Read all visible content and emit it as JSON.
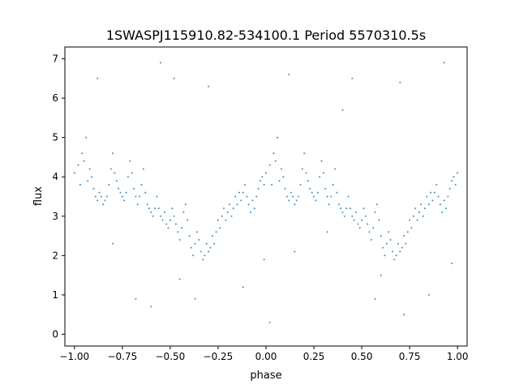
{
  "chart_data": {
    "type": "scatter",
    "title": "1SWASPJ115910.82-534100.1 Period 5570310.5s",
    "xlabel": "phase",
    "ylabel": "flux",
    "xlim": [
      -1.05,
      1.05
    ],
    "ylim": [
      -0.3,
      7.3
    ],
    "xticks": [
      -1.0,
      -0.75,
      -0.5,
      -0.25,
      0.0,
      0.25,
      0.5,
      0.75,
      1.0
    ],
    "xtick_labels": [
      "−1.00",
      "−0.75",
      "−0.50",
      "−0.25",
      "0.00",
      "0.25",
      "0.50",
      "0.75",
      "1.00"
    ],
    "yticks": [
      0,
      1,
      2,
      3,
      4,
      5,
      6,
      7
    ],
    "ytick_labels": [
      "0",
      "1",
      "2",
      "3",
      "4",
      "5",
      "6",
      "7"
    ],
    "grid": false,
    "color": "#1f77b4",
    "series": [
      {
        "points": [
          [
            -1.0,
            4.1
          ],
          [
            -0.98,
            4.3
          ],
          [
            -0.97,
            3.8
          ],
          [
            -0.96,
            4.6
          ],
          [
            -0.95,
            4.4
          ],
          [
            -0.94,
            5.0
          ],
          [
            -0.93,
            3.9
          ],
          [
            -0.92,
            4.2
          ],
          [
            -0.91,
            4.0
          ],
          [
            -0.9,
            3.7
          ],
          [
            -0.89,
            3.5
          ],
          [
            -0.88,
            3.4
          ],
          [
            -0.87,
            3.6
          ],
          [
            -0.86,
            3.5
          ],
          [
            -0.85,
            3.3
          ],
          [
            -0.84,
            3.4
          ],
          [
            -0.83,
            3.5
          ],
          [
            -0.82,
            3.8
          ],
          [
            -0.81,
            4.2
          ],
          [
            -0.8,
            4.6
          ],
          [
            -0.79,
            4.1
          ],
          [
            -0.78,
            3.9
          ],
          [
            -0.77,
            3.7
          ],
          [
            -0.76,
            3.6
          ],
          [
            -0.75,
            3.5
          ],
          [
            -0.74,
            3.4
          ],
          [
            -0.73,
            3.6
          ],
          [
            -0.72,
            4.0
          ],
          [
            -0.71,
            4.4
          ],
          [
            -0.7,
            4.1
          ],
          [
            -0.69,
            3.7
          ],
          [
            -0.68,
            3.5
          ],
          [
            -0.67,
            3.3
          ],
          [
            -0.66,
            3.5
          ],
          [
            -0.65,
            3.8
          ],
          [
            -0.64,
            4.2
          ],
          [
            -0.63,
            3.6
          ],
          [
            -0.62,
            3.3
          ],
          [
            -0.61,
            3.2
          ],
          [
            -0.6,
            3.1
          ],
          [
            -0.59,
            3.0
          ],
          [
            -0.58,
            3.2
          ],
          [
            -0.57,
            3.5
          ],
          [
            -0.56,
            3.2
          ],
          [
            -0.55,
            3.0
          ],
          [
            -0.54,
            2.9
          ],
          [
            -0.53,
            3.1
          ],
          [
            -0.52,
            2.8
          ],
          [
            -0.51,
            2.7
          ],
          [
            -0.5,
            2.9
          ],
          [
            -0.49,
            3.2
          ],
          [
            -0.48,
            3.0
          ],
          [
            -0.47,
            2.8
          ],
          [
            -0.46,
            2.6
          ],
          [
            -0.45,
            2.4
          ],
          [
            -0.44,
            2.7
          ],
          [
            -0.43,
            3.1
          ],
          [
            -0.42,
            3.3
          ],
          [
            -0.41,
            2.9
          ],
          [
            -0.4,
            2.5
          ],
          [
            -0.39,
            2.2
          ],
          [
            -0.38,
            2.0
          ],
          [
            -0.37,
            2.3
          ],
          [
            -0.36,
            2.6
          ],
          [
            -0.35,
            2.4
          ],
          [
            -0.34,
            2.1
          ],
          [
            -0.33,
            1.9
          ],
          [
            -0.32,
            2.0
          ],
          [
            -0.31,
            2.3
          ],
          [
            -0.3,
            2.1
          ],
          [
            -0.29,
            2.2
          ],
          [
            -0.28,
            2.5
          ],
          [
            -0.27,
            2.3
          ],
          [
            -0.26,
            2.6
          ],
          [
            -0.25,
            2.9
          ],
          [
            -0.24,
            2.7
          ],
          [
            -0.23,
            3.0
          ],
          [
            -0.22,
            3.2
          ],
          [
            -0.21,
            2.9
          ],
          [
            -0.2,
            3.1
          ],
          [
            -0.19,
            3.3
          ],
          [
            -0.18,
            3.0
          ],
          [
            -0.17,
            3.2
          ],
          [
            -0.16,
            3.5
          ],
          [
            -0.15,
            3.3
          ],
          [
            -0.14,
            3.6
          ],
          [
            -0.13,
            3.4
          ],
          [
            -0.12,
            3.6
          ],
          [
            -0.11,
            3.8
          ],
          [
            -0.1,
            3.5
          ],
          [
            -0.09,
            3.3
          ],
          [
            -0.08,
            3.1
          ],
          [
            -0.07,
            3.4
          ],
          [
            -0.06,
            3.2
          ],
          [
            -0.05,
            3.5
          ],
          [
            -0.04,
            3.7
          ],
          [
            -0.03,
            3.9
          ],
          [
            -0.02,
            4.0
          ],
          [
            -0.01,
            3.8
          ],
          [
            0.0,
            4.1
          ],
          [
            0.02,
            4.3
          ],
          [
            0.03,
            3.8
          ],
          [
            0.04,
            4.6
          ],
          [
            0.05,
            4.4
          ],
          [
            0.06,
            5.0
          ],
          [
            0.07,
            3.9
          ],
          [
            0.08,
            4.2
          ],
          [
            0.09,
            4.0
          ],
          [
            0.1,
            3.7
          ],
          [
            0.11,
            3.5
          ],
          [
            0.12,
            3.4
          ],
          [
            0.13,
            3.6
          ],
          [
            0.14,
            3.5
          ],
          [
            0.15,
            3.3
          ],
          [
            0.16,
            3.4
          ],
          [
            0.17,
            3.5
          ],
          [
            0.18,
            3.8
          ],
          [
            0.19,
            4.2
          ],
          [
            0.2,
            4.6
          ],
          [
            0.21,
            4.1
          ],
          [
            0.22,
            3.9
          ],
          [
            0.23,
            3.7
          ],
          [
            0.24,
            3.6
          ],
          [
            0.25,
            3.5
          ],
          [
            0.26,
            3.4
          ],
          [
            0.27,
            3.6
          ],
          [
            0.28,
            4.0
          ],
          [
            0.29,
            4.4
          ],
          [
            0.3,
            4.1
          ],
          [
            0.31,
            3.7
          ],
          [
            0.32,
            3.5
          ],
          [
            0.33,
            3.3
          ],
          [
            0.34,
            3.5
          ],
          [
            0.35,
            3.8
          ],
          [
            0.36,
            4.2
          ],
          [
            0.37,
            3.6
          ],
          [
            0.38,
            3.3
          ],
          [
            0.39,
            3.2
          ],
          [
            0.4,
            3.1
          ],
          [
            0.41,
            3.0
          ],
          [
            0.42,
            3.2
          ],
          [
            0.43,
            3.5
          ],
          [
            0.44,
            3.2
          ],
          [
            0.45,
            3.0
          ],
          [
            0.46,
            2.9
          ],
          [
            0.47,
            3.1
          ],
          [
            0.48,
            2.8
          ],
          [
            0.49,
            2.7
          ],
          [
            0.5,
            2.9
          ],
          [
            0.51,
            3.2
          ],
          [
            0.52,
            3.0
          ],
          [
            0.53,
            2.8
          ],
          [
            0.54,
            2.6
          ],
          [
            0.55,
            2.4
          ],
          [
            0.56,
            2.7
          ],
          [
            0.57,
            3.1
          ],
          [
            0.58,
            3.3
          ],
          [
            0.59,
            2.9
          ],
          [
            0.6,
            2.5
          ],
          [
            0.61,
            2.2
          ],
          [
            0.62,
            2.0
          ],
          [
            0.63,
            2.3
          ],
          [
            0.64,
            2.6
          ],
          [
            0.65,
            2.4
          ],
          [
            0.66,
            2.1
          ],
          [
            0.67,
            1.9
          ],
          [
            0.68,
            2.0
          ],
          [
            0.69,
            2.3
          ],
          [
            0.7,
            2.1
          ],
          [
            0.71,
            2.2
          ],
          [
            0.72,
            2.5
          ],
          [
            0.73,
            2.3
          ],
          [
            0.74,
            2.6
          ],
          [
            0.75,
            2.9
          ],
          [
            0.76,
            2.7
          ],
          [
            0.77,
            3.0
          ],
          [
            0.78,
            3.2
          ],
          [
            0.79,
            2.9
          ],
          [
            0.8,
            3.1
          ],
          [
            0.81,
            3.3
          ],
          [
            0.82,
            3.0
          ],
          [
            0.83,
            3.2
          ],
          [
            0.84,
            3.5
          ],
          [
            0.85,
            3.3
          ],
          [
            0.86,
            3.6
          ],
          [
            0.87,
            3.4
          ],
          [
            0.88,
            3.6
          ],
          [
            0.89,
            3.8
          ],
          [
            0.9,
            3.5
          ],
          [
            0.91,
            3.3
          ],
          [
            0.92,
            3.1
          ],
          [
            0.93,
            3.4
          ],
          [
            0.94,
            3.2
          ],
          [
            0.95,
            3.5
          ],
          [
            0.96,
            3.7
          ],
          [
            0.97,
            3.9
          ],
          [
            0.98,
            4.0
          ],
          [
            0.99,
            3.8
          ],
          [
            1.0,
            4.1
          ],
          [
            -0.88,
            6.5
          ],
          [
            -0.55,
            6.9
          ],
          [
            -0.48,
            6.5
          ],
          [
            -0.3,
            6.3
          ],
          [
            0.12,
            6.6
          ],
          [
            0.45,
            6.5
          ],
          [
            0.7,
            6.4
          ],
          [
            0.93,
            6.9
          ],
          [
            -0.6,
            0.7
          ],
          [
            -0.37,
            0.9
          ],
          [
            0.02,
            0.3
          ],
          [
            0.57,
            0.9
          ],
          [
            0.72,
            0.5
          ],
          [
            -0.01,
            1.9
          ],
          [
            0.97,
            1.8
          ],
          [
            -0.12,
            1.2
          ],
          [
            -0.8,
            2.3
          ],
          [
            0.15,
            2.1
          ],
          [
            0.85,
            1.0
          ],
          [
            -0.68,
            0.9
          ],
          [
            0.32,
            2.6
          ],
          [
            -0.45,
            1.4
          ],
          [
            0.6,
            1.5
          ],
          [
            0.4,
            5.7
          ]
        ]
      }
    ]
  }
}
